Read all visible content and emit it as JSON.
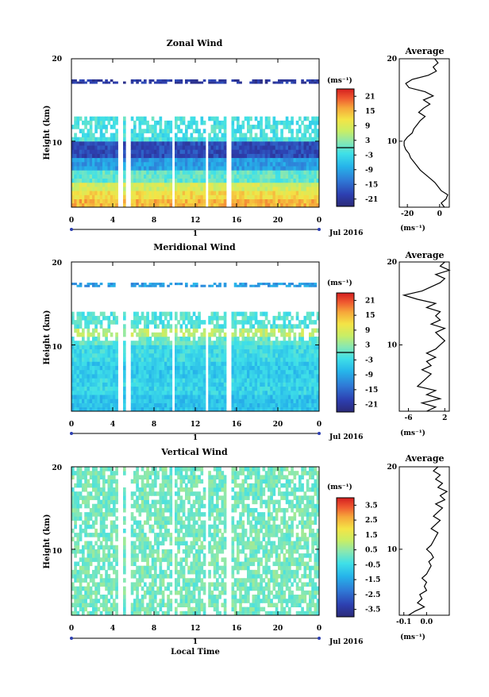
{
  "figure": {
    "x_axis_label": "Local Time",
    "y_axis_label": "Height (km)",
    "date_label": "Jul 2016",
    "day_marker": "1"
  },
  "panels": [
    {
      "title": "Zonal Wind",
      "unit_label": "(ms⁻¹)",
      "colorbar_ticks": [
        "21",
        "15",
        "9",
        "3",
        "-3",
        "-9",
        "-15",
        "-21"
      ],
      "colorbar_range": [
        -24,
        24
      ],
      "profile_title": "Average",
      "profile_xunit": "(ms⁻¹)",
      "profile_xticks": [
        "-20",
        "0"
      ]
    },
    {
      "title": "Meridional Wind",
      "unit_label": "(ms⁻¹)",
      "colorbar_ticks": [
        "21",
        "15",
        "9",
        "3",
        "-3",
        "-9",
        "-15",
        "-21"
      ],
      "colorbar_range": [
        -24,
        24
      ],
      "profile_title": "Average",
      "profile_xunit": "(ms⁻¹)",
      "profile_xticks": [
        "-6",
        "2"
      ]
    },
    {
      "title": "Vertical Wind",
      "unit_label": "(ms⁻¹)",
      "colorbar_ticks": [
        "3.5",
        "2.5",
        "1.5",
        "0.5",
        "-0.5",
        "-1.5",
        "-2.5",
        "-3.5"
      ],
      "colorbar_range": [
        -4,
        4
      ],
      "profile_title": "Average",
      "profile_xunit": "(ms⁻¹)",
      "profile_xticks": [
        "-0.1",
        "0.0"
      ]
    }
  ],
  "chart_data": [
    {
      "type": "heatmap",
      "title": "Zonal Wind",
      "xlabel": "",
      "ylabel": "Height (km)",
      "x_ticks": [
        "0",
        "4",
        "8",
        "12",
        "16",
        "20",
        "0"
      ],
      "y_ticks": [
        "10",
        "20"
      ],
      "xlim": [
        0,
        24
      ],
      "ylim": [
        2,
        20
      ],
      "data_gaps_hours": [
        [
          4.6,
          4.9
        ],
        [
          5.3,
          5.7
        ],
        [
          9.7,
          9.9
        ],
        [
          12.9,
          13.3
        ],
        [
          15.1,
          15.4
        ]
      ],
      "regions": [
        {
          "height_km": [
            2,
            3
          ],
          "value": 15
        },
        {
          "height_km": [
            3,
            4
          ],
          "value": 12
        },
        {
          "height_km": [
            4,
            5
          ],
          "value": 8
        },
        {
          "height_km": [
            5,
            6.5
          ],
          "value": 0
        },
        {
          "height_km": [
            6.5,
            8
          ],
          "value": -10
        },
        {
          "height_km": [
            8,
            10
          ],
          "value": -18
        },
        {
          "height_km": [
            10,
            13
          ],
          "value": -2
        },
        {
          "height_km": [
            17,
            17.5
          ],
          "value": -20
        }
      ],
      "profile": {
        "title": "Average",
        "x_unit": "(ms⁻¹)",
        "xlim": [
          -25,
          6
        ],
        "x_ticks": [
          -20,
          0
        ],
        "height_km": [
          2,
          2.5,
          3,
          3.5,
          4,
          4.5,
          5,
          5.5,
          6,
          6.5,
          7,
          7.5,
          8,
          8.5,
          9,
          9.5,
          10,
          10.5,
          11,
          11.5,
          12,
          12.5,
          13,
          13.5,
          14,
          14.5,
          15,
          15.5,
          16,
          16.5,
          17,
          17.5,
          18,
          18.5,
          19,
          19.5,
          20
        ],
        "values": [
          3,
          1,
          4,
          5,
          1,
          -1,
          -3,
          -6,
          -9,
          -12,
          -14,
          -16,
          -18,
          -19,
          -21,
          -22,
          -22,
          -20,
          -17,
          -16,
          -14,
          -12,
          -9,
          -13,
          -10,
          -6,
          -10,
          -4,
          -9,
          -19,
          -21,
          -17,
          -7,
          -2,
          -4,
          -1,
          -3
        ]
      }
    },
    {
      "type": "heatmap",
      "title": "Meridional Wind",
      "xlabel": "",
      "ylabel": "Height (km)",
      "x_ticks": [
        "0",
        "4",
        "8",
        "12",
        "16",
        "20",
        "0"
      ],
      "y_ticks": [
        "10",
        "20"
      ],
      "xlim": [
        0,
        24
      ],
      "ylim": [
        2,
        20
      ],
      "data_gaps_hours": [
        [
          4.6,
          4.9
        ],
        [
          5.3,
          5.7
        ],
        [
          9.7,
          9.9
        ],
        [
          12.9,
          13.3
        ],
        [
          15.1,
          15.4
        ]
      ],
      "regions": [
        {
          "height_km": [
            2,
            4
          ],
          "value": -6
        },
        {
          "height_km": [
            4,
            6
          ],
          "value": -4
        },
        {
          "height_km": [
            6,
            8
          ],
          "value": -5
        },
        {
          "height_km": [
            8,
            10
          ],
          "value": -3
        },
        {
          "height_km": [
            10,
            11
          ],
          "value": 0
        },
        {
          "height_km": [
            11,
            12
          ],
          "value": 6
        },
        {
          "height_km": [
            12,
            14
          ],
          "value": -1
        },
        {
          "height_km": [
            17,
            17.5
          ],
          "value": -10
        }
      ],
      "profile": {
        "title": "Average",
        "x_unit": "(ms⁻¹)",
        "xlim": [
          -8,
          3
        ],
        "x_ticks": [
          -6,
          2
        ],
        "height_km": [
          2,
          2.5,
          3,
          3.5,
          4,
          4.5,
          5,
          5.5,
          6,
          6.5,
          7,
          7.5,
          8,
          8.5,
          9,
          9.5,
          10,
          10.5,
          11,
          11.5,
          12,
          12.5,
          13,
          13.5,
          14,
          14.5,
          15,
          15.5,
          16,
          16.5,
          17,
          17.5,
          18,
          18.5,
          19,
          19.5,
          20
        ],
        "values": [
          -2,
          0,
          -3,
          1,
          -2,
          0,
          -4,
          -3,
          -2,
          -1,
          -3,
          -1,
          -2,
          0,
          -2,
          0,
          1,
          2,
          1,
          0,
          2,
          -1,
          1,
          0,
          1,
          -2,
          0,
          -4,
          -7,
          -3,
          -1,
          1,
          2,
          0,
          3,
          1,
          2
        ]
      }
    },
    {
      "type": "heatmap",
      "title": "Vertical Wind",
      "xlabel": "Local Time",
      "ylabel": "Height (km)",
      "x_ticks": [
        "0",
        "4",
        "8",
        "12",
        "16",
        "20",
        "0"
      ],
      "y_ticks": [
        "10",
        "20"
      ],
      "xlim": [
        0,
        24
      ],
      "ylim": [
        2,
        20
      ],
      "data_gaps_hours": [
        [
          4.6,
          4.9
        ],
        [
          5.3,
          5.7
        ],
        [
          9.7,
          9.9
        ],
        [
          12.9,
          13.3
        ],
        [
          15.1,
          15.4
        ]
      ],
      "regions": [
        {
          "height_km": [
            2,
            20
          ],
          "value": 0.2
        }
      ],
      "profile": {
        "title": "Average",
        "x_unit": "(ms⁻¹)",
        "xlim": [
          -0.12,
          0.1
        ],
        "x_ticks": [
          -0.1,
          0.0
        ],
        "height_km": [
          2,
          2.5,
          3,
          3.5,
          4,
          4.5,
          5,
          5.5,
          6,
          6.5,
          7,
          7.5,
          8,
          8.5,
          9,
          9.5,
          10,
          10.5,
          11,
          11.5,
          12,
          12.5,
          13,
          13.5,
          14,
          14.5,
          15,
          15.5,
          16,
          16.5,
          17,
          17.5,
          18,
          18.5,
          19,
          19.5,
          20
        ],
        "values": [
          -0.08,
          -0.05,
          -0.01,
          -0.04,
          -0.02,
          -0.03,
          0.0,
          -0.01,
          0.0,
          -0.02,
          0.0,
          0.01,
          0.02,
          0.01,
          0.03,
          0.02,
          0.0,
          0.02,
          0.03,
          0.04,
          0.05,
          0.02,
          0.04,
          0.06,
          0.03,
          0.05,
          0.07,
          0.04,
          0.08,
          0.06,
          0.09,
          0.05,
          0.07,
          0.04,
          0.06,
          0.03,
          0.05
        ]
      }
    }
  ]
}
